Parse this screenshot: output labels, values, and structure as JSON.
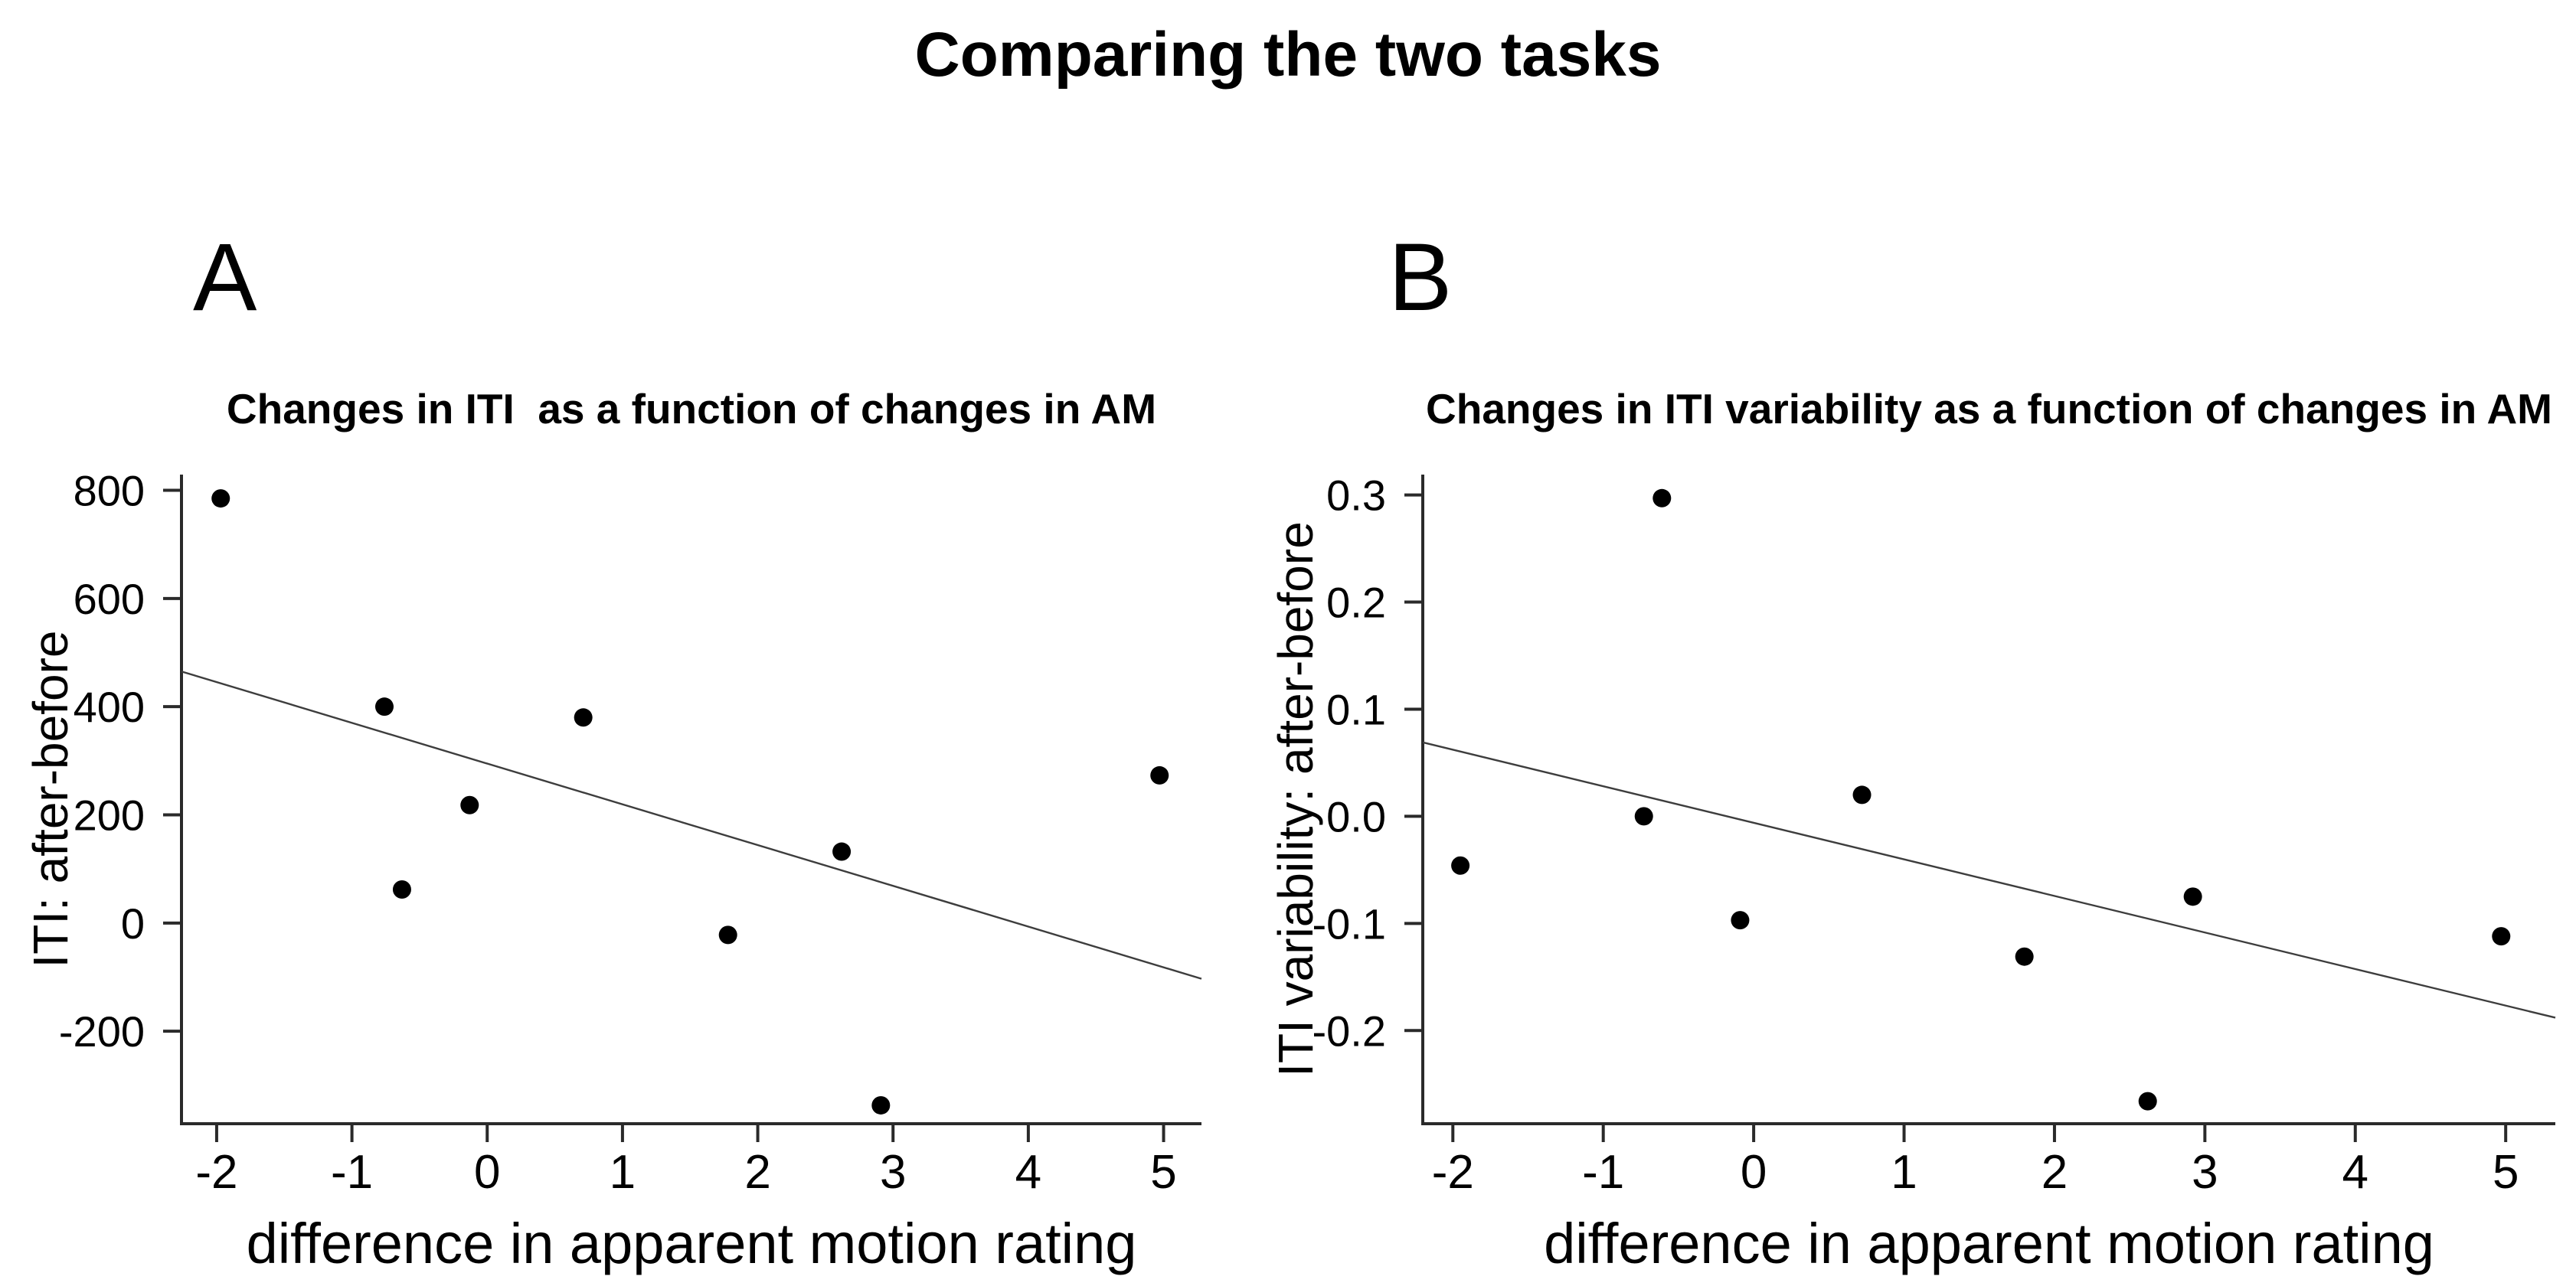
{
  "title": "Comparing the two tasks",
  "style": {
    "background": "#ffffff",
    "point_color": "#000000",
    "line_color": "#3d3d3d",
    "axis_color": "#2a2a2a",
    "text_color": "#000000"
  },
  "chart_data": [
    {
      "type": "scatter",
      "panel_label": "A",
      "title": "Changes in ITI  as a function of changes in AM",
      "xlabel": "difference in apparent motion rating",
      "ylabel": "ITI: after-before",
      "grid": false,
      "legend": "none",
      "xlim": [
        -2.26,
        5.28
      ],
      "ylim": [
        -371,
        829
      ],
      "x_tick_values": [
        -2,
        -1,
        0,
        1,
        2,
        3,
        4,
        5
      ],
      "x_tick_labels": [
        "-2",
        "-1",
        "0",
        "1",
        "2",
        "3",
        "4",
        "5"
      ],
      "y_tick_values": [
        800,
        600,
        400,
        200,
        0,
        -200
      ],
      "y_tick_labels": [
        "800",
        "600",
        "400",
        "200",
        "0",
        "-200"
      ],
      "points": {
        "x": [
          -1.97,
          -0.76,
          -0.63,
          -0.13,
          0.71,
          1.78,
          2.62,
          2.91,
          4.97
        ],
        "y": [
          785,
          400,
          62,
          218,
          380,
          -22,
          132,
          -337,
          273
        ]
      },
      "fit_line": {
        "x": [
          -2.26,
          5.28
        ],
        "y": [
          465,
          -103
        ]
      }
    },
    {
      "type": "scatter",
      "panel_label": "B",
      "title": "Changes in ITI variability as a function of changes in AM",
      "xlabel": "difference in apparent motion rating",
      "ylabel": "ITI variability: after-before",
      "grid": false,
      "legend": "none",
      "xlim": [
        -2.2,
        5.33
      ],
      "ylim": [
        -0.287,
        0.319
      ],
      "x_tick_values": [
        -2,
        -1,
        0,
        1,
        2,
        3,
        4,
        5
      ],
      "x_tick_labels": [
        "-2",
        "-1",
        "0",
        "1",
        "2",
        "3",
        "4",
        "5"
      ],
      "y_tick_values": [
        0.3,
        0.2,
        0.1,
        0.0,
        -0.1,
        -0.2
      ],
      "y_tick_labels": [
        "0.3",
        "0.2",
        "0.1",
        "0.0",
        "-0.1",
        "-0.2"
      ],
      "points": {
        "x": [
          -1.95,
          -0.73,
          -0.61,
          -0.09,
          0.72,
          1.8,
          2.62,
          2.92,
          4.97
        ],
        "y": [
          -0.046,
          0.0,
          0.297,
          -0.097,
          0.02,
          -0.131,
          -0.266,
          -0.075,
          -0.112
        ]
      },
      "fit_line": {
        "x": [
          -2.2,
          5.33
        ],
        "y": [
          0.069,
          -0.188
        ]
      }
    }
  ]
}
